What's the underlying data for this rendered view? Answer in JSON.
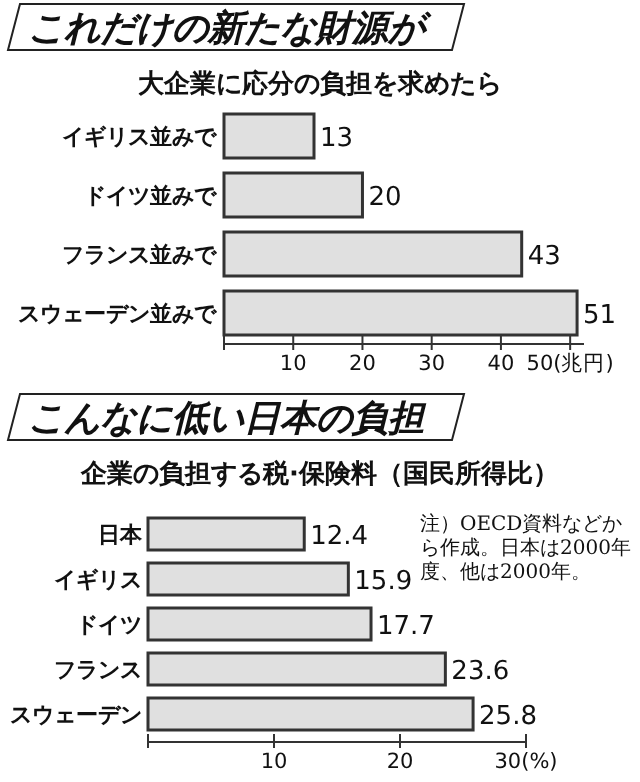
{
  "chart_data": [
    {
      "type": "bar",
      "orientation": "horizontal",
      "title": "これだけの新たな財源が",
      "subtitle": "大企業に応分の負担を求めたら",
      "categories": [
        "イギリス並みで",
        "ドイツ並みで",
        "フランス並みで",
        "スウェーデン並みで"
      ],
      "values": [
        13,
        20,
        43,
        51
      ],
      "color": "#e0e0e0",
      "data_labels": true,
      "xlim": [
        0,
        52
      ],
      "xticks": [
        {
          "value": 0,
          "label": null
        },
        10,
        20,
        30,
        40,
        {
          "value": 50,
          "label": "50(兆円)"
        }
      ]
    },
    {
      "type": "bar",
      "orientation": "horizontal",
      "title": "こんなに低い日本の負担",
      "subtitle": "企業の負担する税·保険料（国民所得比）",
      "categories": [
        "日本",
        "イギリス",
        "ドイツ",
        "フランス",
        "スウェーデン"
      ],
      "values": [
        12.4,
        15.9,
        17.7,
        23.6,
        25.8
      ],
      "color": "#e0e0e0",
      "data_labels": true,
      "xlim": [
        0,
        30
      ],
      "xticks": [
        {
          "value": 0,
          "label": null
        },
        10,
        20,
        {
          "value": 30,
          "label": "30(%)"
        }
      ],
      "annotations": [
        "注）OECD資料などから作成。日本は2000年度、他は2000年。"
      ]
    }
  ]
}
